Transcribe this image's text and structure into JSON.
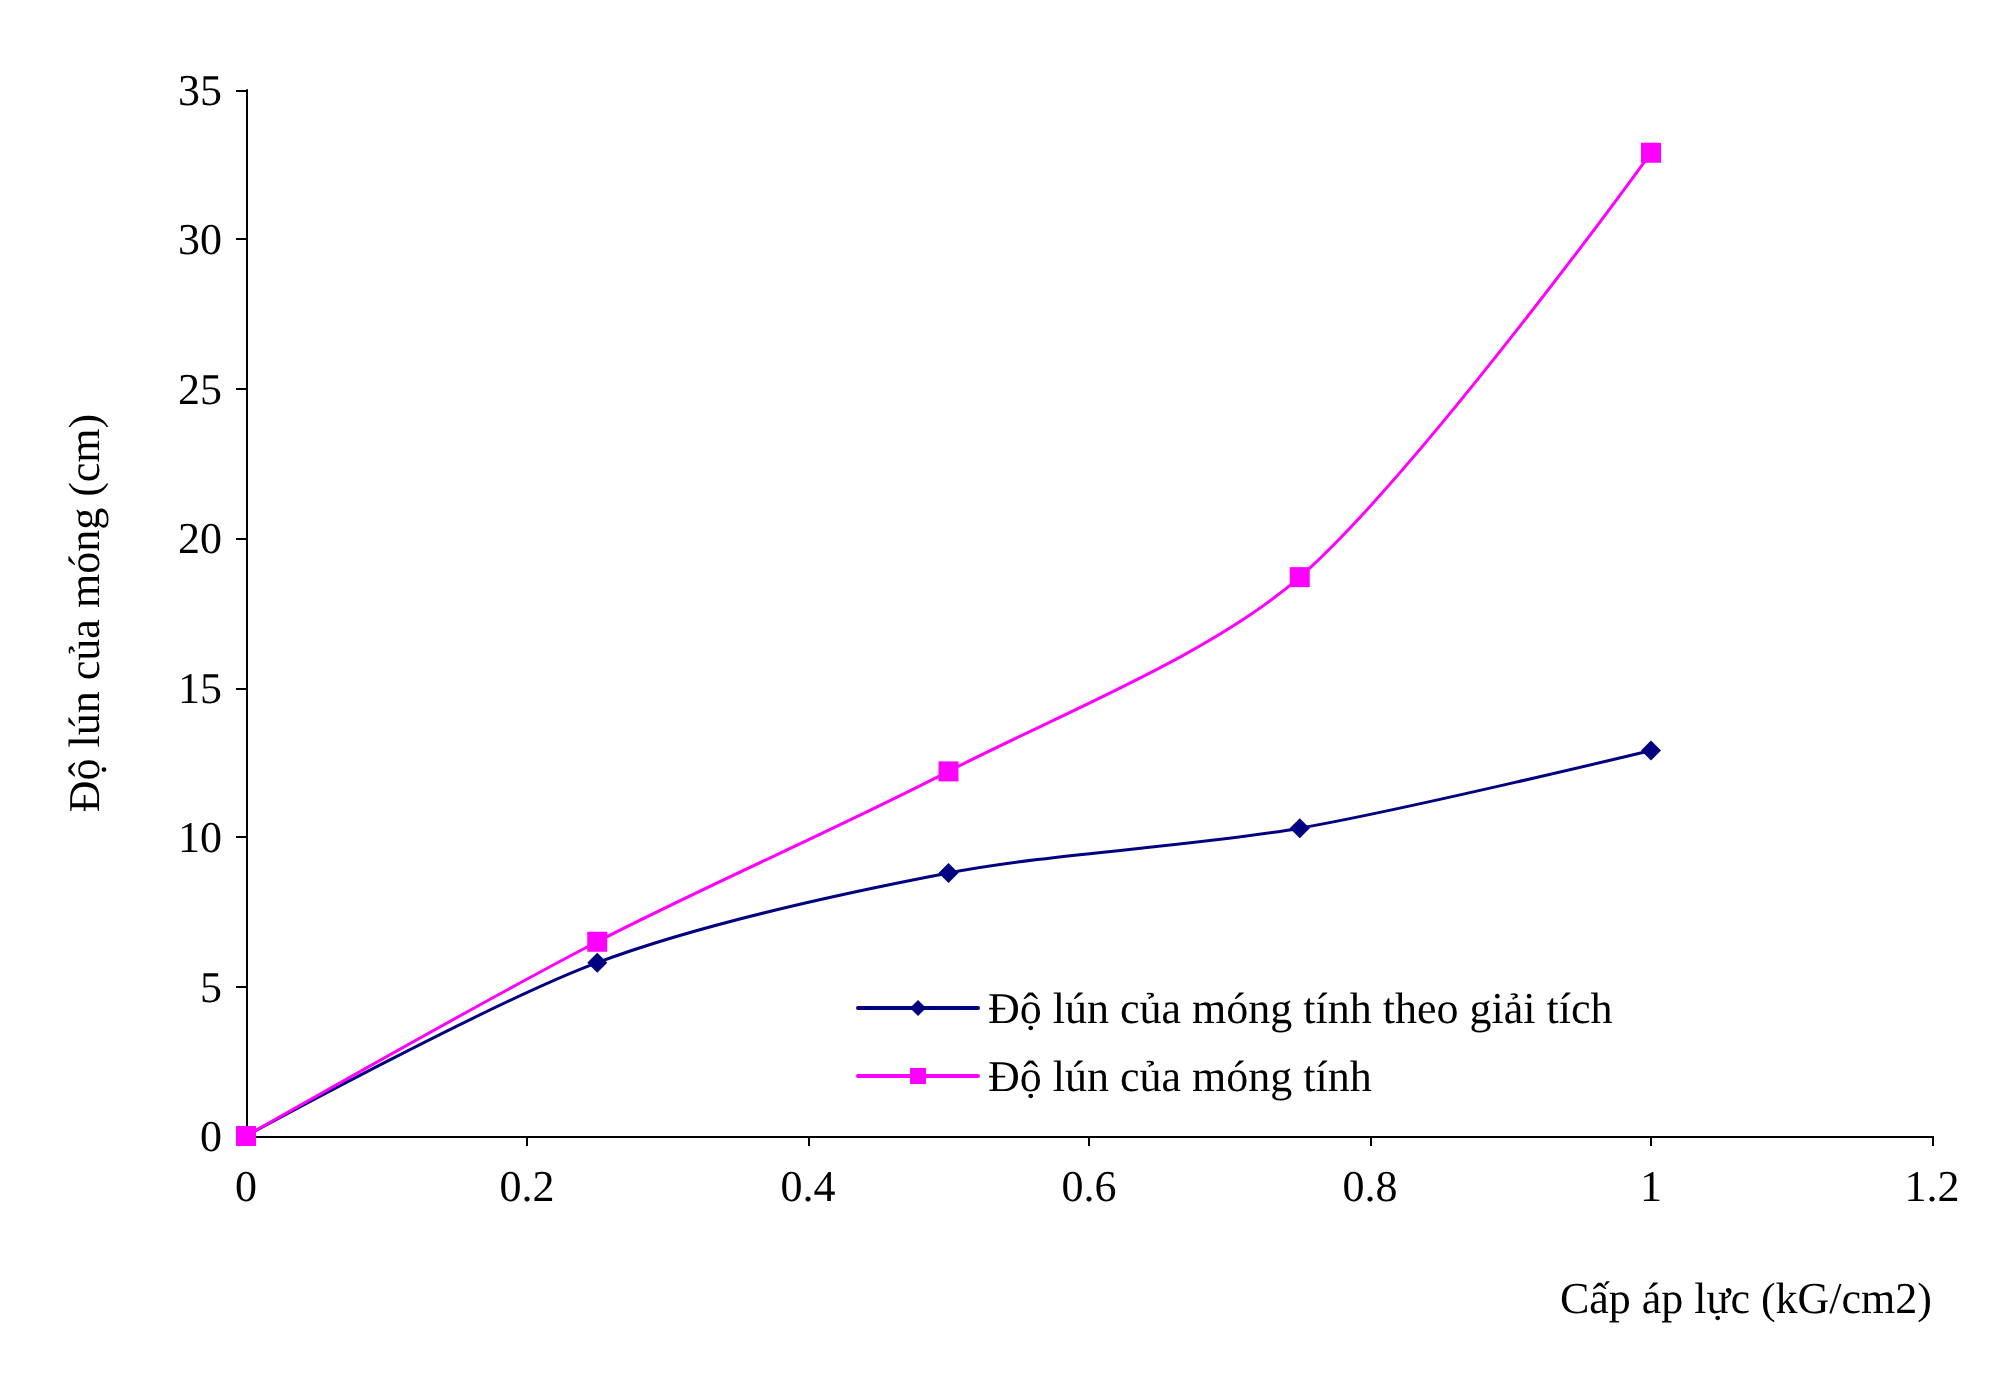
{
  "chart_data": {
    "type": "line",
    "xlabel": "Cấp áp lực (kG/cm2)",
    "ylabel": "Độ lún của móng (cm)",
    "x": [
      0,
      0.25,
      0.5,
      0.75,
      1
    ],
    "series": [
      {
        "name": "Độ lún của móng tính theo giải tích",
        "color": "#000080",
        "marker": "diamond",
        "values": [
          0,
          5.8,
          8.8,
          10.3,
          12.9
        ]
      },
      {
        "name": "Độ lún của móng tính",
        "color": "#ff00ff",
        "marker": "square",
        "values": [
          0,
          6.5,
          12.2,
          18.7,
          32.9
        ]
      }
    ],
    "xlim": [
      0,
      1.2
    ],
    "xticks": [
      0,
      0.2,
      0.4,
      0.6,
      0.8,
      1,
      1.2
    ],
    "ylim": [
      0,
      35
    ],
    "yticks": [
      0,
      5,
      10,
      15,
      20,
      25,
      30,
      35
    ],
    "grid": false,
    "legend": "bottom right",
    "line_style": "solid"
  }
}
